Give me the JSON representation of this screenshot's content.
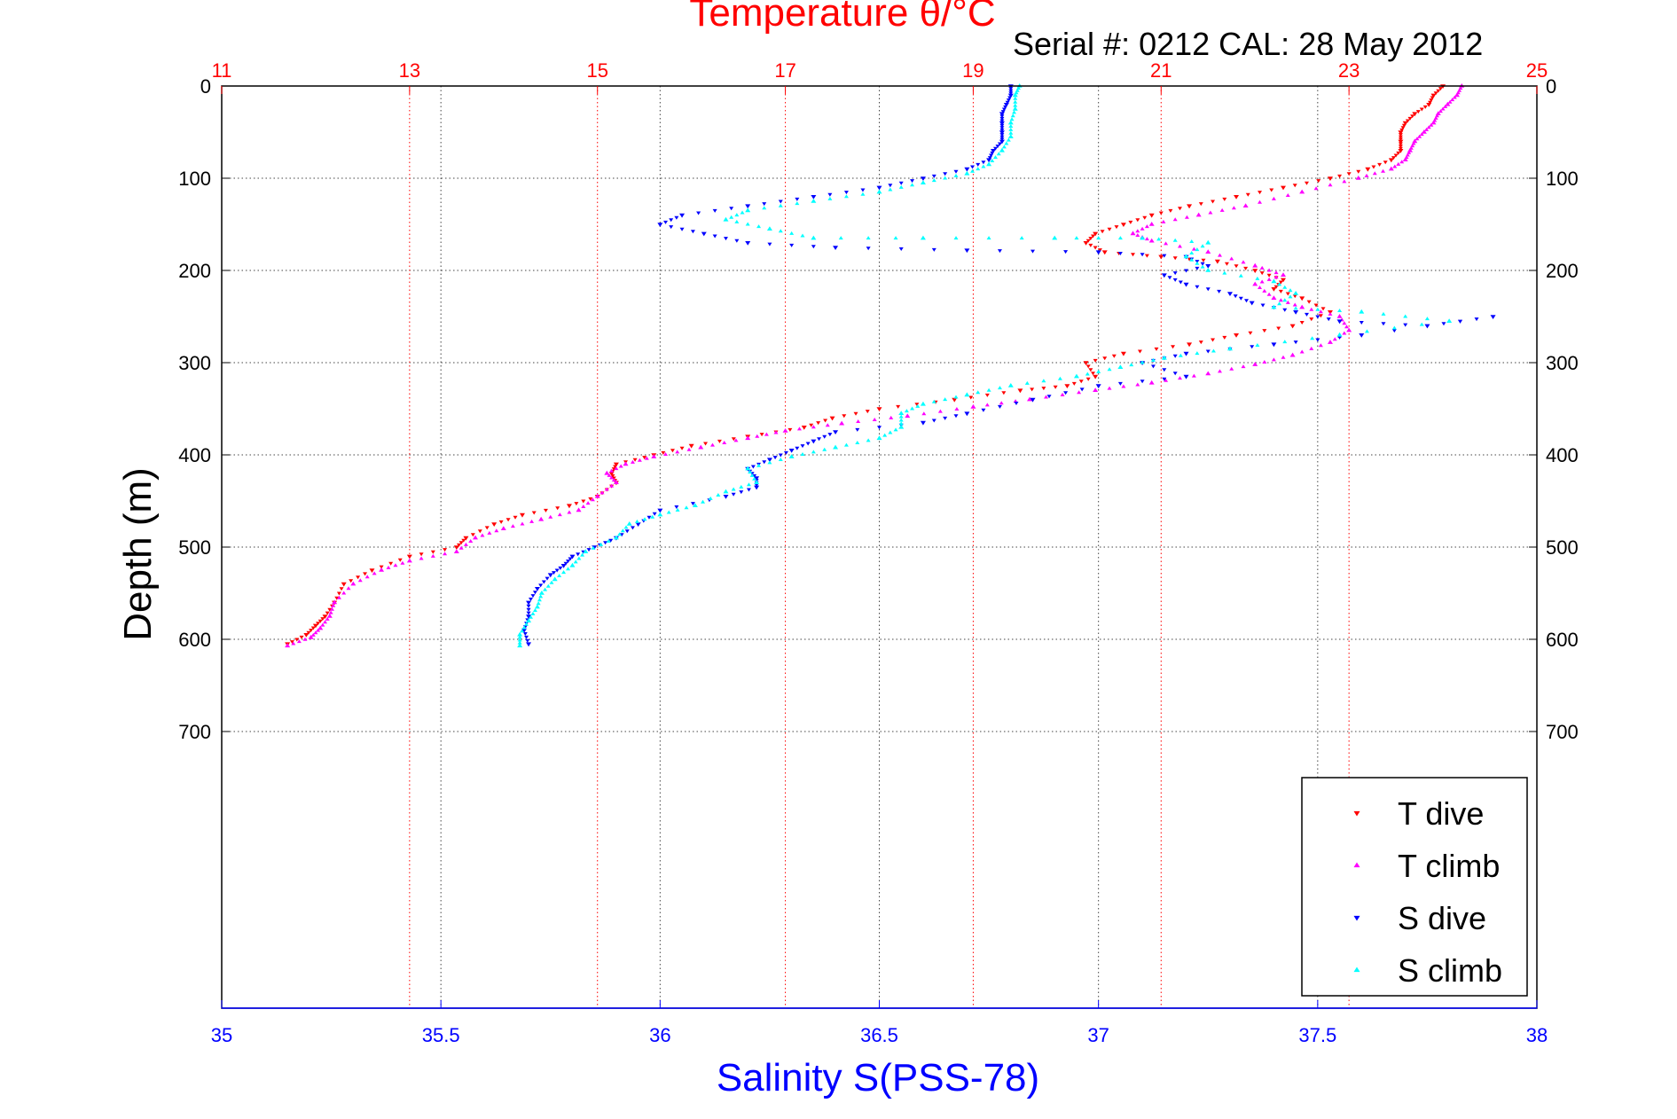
{
  "chart_data": {
    "type": "scatter",
    "title": "Temperature θ/°C",
    "subtitle": "Serial #: 0212  CAL: 28 May 2012",
    "xlabel": "Salinity S(PSS-78)",
    "ylabel": "Depth (m)",
    "y_axis": {
      "label": "Depth (m)",
      "lim": [
        0,
        1000
      ],
      "reversed": true,
      "ticks": [
        0,
        100,
        200,
        300,
        400,
        500,
        600,
        700
      ],
      "tick_labels": [
        "0",
        "100",
        "200",
        "300",
        "400",
        "500",
        "600",
        "700"
      ],
      "grid": true
    },
    "x_axes": {
      "temperature": {
        "position": "top",
        "label": "Temperature θ/°C",
        "lim": [
          11,
          25
        ],
        "ticks": [
          11,
          13,
          15,
          17,
          19,
          21,
          23,
          25
        ],
        "tick_labels": [
          "11",
          "13",
          "15",
          "17",
          "19",
          "21",
          "23",
          "25"
        ],
        "color": "#ff0000",
        "grid": true
      },
      "salinity": {
        "position": "bottom",
        "label": "Salinity S(PSS-78)",
        "lim": [
          35,
          38
        ],
        "ticks": [
          35,
          35.5,
          36,
          36.5,
          37,
          37.5,
          38
        ],
        "tick_labels": [
          "35",
          "35.5",
          "36",
          "36.5",
          "37",
          "37.5",
          "38"
        ],
        "color": "#0000ff",
        "grid": true
      }
    },
    "legend": {
      "placement": "bottom-right",
      "entries": [
        "T dive",
        "T climb",
        "S dive",
        "S climb"
      ]
    },
    "series": [
      {
        "name": "T dive",
        "axis": "temperature",
        "marker": "triangle-down",
        "color": "#ff0000",
        "points": [
          [
            24.0,
            0
          ],
          [
            23.9,
            10
          ],
          [
            23.85,
            20
          ],
          [
            23.7,
            30
          ],
          [
            23.6,
            40
          ],
          [
            23.55,
            50
          ],
          [
            23.55,
            60
          ],
          [
            23.55,
            70
          ],
          [
            23.45,
            80
          ],
          [
            23.2,
            90
          ],
          [
            22.8,
            100
          ],
          [
            22.3,
            110
          ],
          [
            21.8,
            120
          ],
          [
            21.3,
            130
          ],
          [
            20.9,
            140
          ],
          [
            20.6,
            150
          ],
          [
            20.3,
            160
          ],
          [
            20.2,
            170
          ],
          [
            20.4,
            180
          ],
          [
            21.0,
            185
          ],
          [
            21.6,
            190
          ],
          [
            22.0,
            200
          ],
          [
            22.3,
            210
          ],
          [
            22.2,
            220
          ],
          [
            22.5,
            230
          ],
          [
            22.8,
            245
          ],
          [
            22.4,
            260
          ],
          [
            21.8,
            270
          ],
          [
            21.3,
            280
          ],
          [
            20.6,
            290
          ],
          [
            20.2,
            300
          ],
          [
            20.3,
            315
          ],
          [
            20.0,
            325
          ],
          [
            19.5,
            330
          ],
          [
            18.8,
            340
          ],
          [
            18.0,
            350
          ],
          [
            17.5,
            360
          ],
          [
            17.2,
            370
          ],
          [
            16.6,
            380
          ],
          [
            16.0,
            390
          ],
          [
            15.6,
            400
          ],
          [
            15.2,
            410
          ],
          [
            15.15,
            420
          ],
          [
            15.2,
            430
          ],
          [
            15.0,
            445
          ],
          [
            14.7,
            455
          ],
          [
            14.2,
            465
          ],
          [
            13.9,
            475
          ],
          [
            13.6,
            490
          ],
          [
            13.5,
            500
          ],
          [
            13.0,
            510
          ],
          [
            12.6,
            525
          ],
          [
            12.3,
            540
          ],
          [
            12.2,
            560
          ],
          [
            12.1,
            575
          ],
          [
            12.0,
            585
          ],
          [
            11.9,
            595
          ],
          [
            11.7,
            605
          ]
        ]
      },
      {
        "name": "T climb",
        "axis": "temperature",
        "marker": "triangle-up",
        "color": "#ff00ff",
        "points": [
          [
            11.7,
            607
          ],
          [
            11.95,
            598
          ],
          [
            12.05,
            588
          ],
          [
            12.15,
            575
          ],
          [
            12.2,
            560
          ],
          [
            12.4,
            540
          ],
          [
            12.7,
            525
          ],
          [
            13.0,
            515
          ],
          [
            13.5,
            505
          ],
          [
            13.7,
            490
          ],
          [
            14.0,
            480
          ],
          [
            14.4,
            470
          ],
          [
            14.8,
            460
          ],
          [
            15.0,
            445
          ],
          [
            15.2,
            430
          ],
          [
            15.1,
            420
          ],
          [
            15.3,
            410
          ],
          [
            15.6,
            402
          ],
          [
            16.1,
            392
          ],
          [
            16.6,
            382
          ],
          [
            17.0,
            374
          ],
          [
            17.6,
            366
          ],
          [
            18.3,
            358
          ],
          [
            19.0,
            348
          ],
          [
            19.6,
            340
          ],
          [
            20.3,
            330
          ],
          [
            20.9,
            322
          ],
          [
            21.5,
            312
          ],
          [
            22.0,
            302
          ],
          [
            22.4,
            292
          ],
          [
            22.8,
            278
          ],
          [
            23.0,
            265
          ],
          [
            22.9,
            250
          ],
          [
            22.5,
            240
          ],
          [
            22.2,
            230
          ],
          [
            22.0,
            215
          ],
          [
            22.3,
            205
          ],
          [
            22.0,
            195
          ],
          [
            21.5,
            180
          ],
          [
            20.9,
            168
          ],
          [
            20.7,
            160
          ],
          [
            20.9,
            150
          ],
          [
            21.4,
            140
          ],
          [
            21.9,
            130
          ],
          [
            22.5,
            115
          ],
          [
            23.1,
            100
          ],
          [
            23.45,
            90
          ],
          [
            23.6,
            80
          ],
          [
            23.65,
            70
          ],
          [
            23.7,
            60
          ],
          [
            23.8,
            50
          ],
          [
            23.9,
            40
          ],
          [
            23.95,
            30
          ],
          [
            24.05,
            20
          ],
          [
            24.15,
            10
          ],
          [
            24.2,
            0
          ]
        ]
      },
      {
        "name": "S dive",
        "axis": "salinity",
        "marker": "triangle-down",
        "color": "#0000ff",
        "points": [
          [
            36.8,
            0
          ],
          [
            36.8,
            10
          ],
          [
            36.79,
            20
          ],
          [
            36.78,
            30
          ],
          [
            36.78,
            40
          ],
          [
            36.78,
            50
          ],
          [
            36.78,
            60
          ],
          [
            36.76,
            70
          ],
          [
            36.75,
            80
          ],
          [
            36.7,
            90
          ],
          [
            36.6,
            100
          ],
          [
            36.5,
            110
          ],
          [
            36.35,
            120
          ],
          [
            36.2,
            130
          ],
          [
            36.05,
            140
          ],
          [
            36.0,
            150
          ],
          [
            36.1,
            160
          ],
          [
            36.2,
            170
          ],
          [
            36.4,
            175
          ],
          [
            36.7,
            178
          ],
          [
            37.0,
            180
          ],
          [
            37.2,
            185
          ],
          [
            37.25,
            195
          ],
          [
            37.15,
            205
          ],
          [
            37.2,
            215
          ],
          [
            37.3,
            225
          ],
          [
            37.35,
            235
          ],
          [
            37.45,
            245
          ],
          [
            37.55,
            255
          ],
          [
            37.75,
            260
          ],
          [
            37.9,
            250
          ],
          [
            37.6,
            270
          ],
          [
            37.4,
            280
          ],
          [
            37.2,
            290
          ],
          [
            37.1,
            300
          ],
          [
            37.2,
            315
          ],
          [
            37.0,
            325
          ],
          [
            36.85,
            340
          ],
          [
            36.7,
            355
          ],
          [
            36.6,
            365
          ],
          [
            36.4,
            375
          ],
          [
            36.35,
            385
          ],
          [
            36.3,
            395
          ],
          [
            36.25,
            405
          ],
          [
            36.2,
            415
          ],
          [
            36.22,
            425
          ],
          [
            36.22,
            435
          ],
          [
            36.15,
            445
          ],
          [
            36.0,
            460
          ],
          [
            35.95,
            475
          ],
          [
            35.9,
            490
          ],
          [
            35.85,
            500
          ],
          [
            35.8,
            510
          ],
          [
            35.78,
            520
          ],
          [
            35.75,
            530
          ],
          [
            35.72,
            545
          ],
          [
            35.7,
            560
          ],
          [
            35.7,
            575
          ],
          [
            35.69,
            590
          ],
          [
            35.7,
            605
          ]
        ]
      },
      {
        "name": "S climb",
        "axis": "salinity",
        "marker": "triangle-up",
        "color": "#00ffff",
        "points": [
          [
            35.68,
            607
          ],
          [
            35.68,
            595
          ],
          [
            35.7,
            580
          ],
          [
            35.72,
            565
          ],
          [
            35.73,
            550
          ],
          [
            35.76,
            535
          ],
          [
            35.8,
            520
          ],
          [
            35.83,
            505
          ],
          [
            35.9,
            490
          ],
          [
            35.93,
            475
          ],
          [
            36.0,
            465
          ],
          [
            36.08,
            455
          ],
          [
            36.15,
            440
          ],
          [
            36.22,
            430
          ],
          [
            36.2,
            415
          ],
          [
            36.3,
            402
          ],
          [
            36.4,
            392
          ],
          [
            36.5,
            382
          ],
          [
            36.55,
            370
          ],
          [
            36.55,
            355
          ],
          [
            36.6,
            345
          ],
          [
            36.7,
            335
          ],
          [
            36.8,
            325
          ],
          [
            36.95,
            315
          ],
          [
            37.05,
            305
          ],
          [
            37.15,
            295
          ],
          [
            37.3,
            285
          ],
          [
            37.55,
            270
          ],
          [
            37.8,
            255
          ],
          [
            37.6,
            245
          ],
          [
            37.4,
            240
          ],
          [
            37.45,
            225
          ],
          [
            37.4,
            212
          ],
          [
            37.25,
            200
          ],
          [
            37.2,
            185
          ],
          [
            37.25,
            170
          ],
          [
            37.1,
            165
          ],
          [
            36.9,
            165
          ],
          [
            36.6,
            165
          ],
          [
            36.35,
            165
          ],
          [
            36.25,
            155
          ],
          [
            36.15,
            145
          ],
          [
            36.2,
            135
          ],
          [
            36.35,
            125
          ],
          [
            36.5,
            115
          ],
          [
            36.6,
            105
          ],
          [
            36.7,
            95
          ],
          [
            36.75,
            85
          ],
          [
            36.78,
            70
          ],
          [
            36.8,
            55
          ],
          [
            36.8,
            40
          ],
          [
            36.81,
            25
          ],
          [
            36.81,
            10
          ],
          [
            36.82,
            0
          ]
        ]
      }
    ]
  }
}
